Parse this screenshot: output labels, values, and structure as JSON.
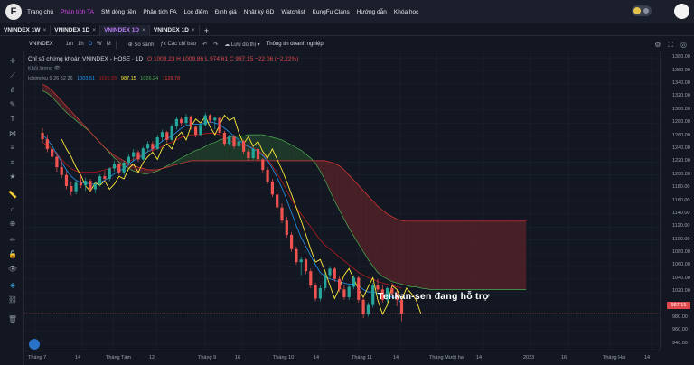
{
  "nav": {
    "logo": "F",
    "items": [
      "Trang chủ",
      "Phân tích TA",
      "SM dòng tiền",
      "Phân tích FA",
      "Lọc điểm",
      "Định giá",
      "Nhật ký GD",
      "Watchlist",
      "KungFu Clans",
      "Hướng dẫn",
      "Khóa học"
    ],
    "active_index": 1
  },
  "tabs": [
    "VNINDEX 1W",
    "VNINDEX 1D",
    "VNINDEX 1D",
    "VNINDEX 1D"
  ],
  "active_tab": 2,
  "toolbar": {
    "symbol": "VNINDEX",
    "intervals": [
      "1m",
      "1h",
      "D",
      "W",
      "M"
    ],
    "active_interval": "D",
    "compare": "So sánh",
    "indicators": "Các chỉ báo",
    "undo": "↶",
    "redo": "↷",
    "save": "Lưu đồ thị",
    "save_arrow": "▾",
    "company_info": "Thông tin doanh nghiệp"
  },
  "legend": {
    "title": "Chỉ số chứng khoán VNINDEX - HOSE",
    "timeframe": "1D",
    "ohlc": "O 1008.23  H 1009.86  L 974.61  C 987.15  −22.06 (−2.22%)",
    "volume_label": "Khối lượng",
    "ichimoku_label": "Ichimoku 9 26 52 26",
    "ichimoku_values": [
      "1003.51",
      "1026.55",
      "987.15",
      "1026.24",
      "1128.78"
    ]
  },
  "annotation": "Tenkan-sen đang hỗ trợ",
  "price_tag": "987.15",
  "yaxis": [
    "1380.00",
    "1360.00",
    "1340.00",
    "1320.00",
    "1300.00",
    "1280.00",
    "1260.00",
    "1240.00",
    "1220.00",
    "1200.00",
    "1180.00",
    "1160.00",
    "1140.00",
    "1120.00",
    "1100.00",
    "1080.00",
    "1060.00",
    "1040.00",
    "1020.00",
    "1000.00",
    "980.00",
    "960.00",
    "940.00"
  ],
  "xaxis": [
    {
      "label": "Tháng 7"
    },
    {
      "label": "14"
    },
    {
      "label": "Tháng Tám"
    },
    {
      "label": "12"
    },
    {
      "label": "Tháng 9"
    },
    {
      "label": "16"
    },
    {
      "label": "Tháng 10"
    },
    {
      "label": "14"
    },
    {
      "label": "Tháng 11"
    },
    {
      "label": "14"
    },
    {
      "label": "Tháng Mười hai"
    },
    {
      "label": "14"
    },
    {
      "label": "2023"
    },
    {
      "label": "16"
    },
    {
      "label": "Tháng Hai"
    },
    {
      "label": "14"
    }
  ],
  "colors": {
    "up": "#26a69a",
    "down": "#ef5350",
    "tenkan": "#2196f3",
    "kijun": "#b71c1c",
    "chikou": "#ffeb3b",
    "span_a": "#4caf50",
    "span_b": "#e53935",
    "cloud_bear": "#5a2329",
    "cloud_bull": "#22432c"
  },
  "chart_data": {
    "type": "candlestick",
    "y_range": [
      930,
      1390
    ],
    "candles": [
      [
        1265,
        1272,
        1250,
        1255
      ],
      [
        1255,
        1262,
        1235,
        1240
      ],
      [
        1240,
        1248,
        1222,
        1228
      ],
      [
        1228,
        1235,
        1205,
        1212
      ],
      [
        1212,
        1222,
        1195,
        1200
      ],
      [
        1200,
        1206,
        1178,
        1183
      ],
      [
        1183,
        1190,
        1168,
        1175
      ],
      [
        1175,
        1192,
        1170,
        1188
      ],
      [
        1188,
        1200,
        1180,
        1184
      ],
      [
        1184,
        1196,
        1176,
        1191
      ],
      [
        1191,
        1194,
        1174,
        1178
      ],
      [
        1178,
        1190,
        1172,
        1186
      ],
      [
        1186,
        1201,
        1182,
        1198
      ],
      [
        1198,
        1206,
        1190,
        1194
      ],
      [
        1194,
        1212,
        1190,
        1210
      ],
      [
        1210,
        1222,
        1205,
        1217
      ],
      [
        1217,
        1220,
        1200,
        1204
      ],
      [
        1204,
        1222,
        1200,
        1219
      ],
      [
        1219,
        1232,
        1215,
        1228
      ],
      [
        1228,
        1240,
        1222,
        1235
      ],
      [
        1235,
        1238,
        1220,
        1224
      ],
      [
        1224,
        1244,
        1222,
        1241
      ],
      [
        1241,
        1252,
        1235,
        1248
      ],
      [
        1248,
        1252,
        1236,
        1240
      ],
      [
        1240,
        1262,
        1238,
        1258
      ],
      [
        1258,
        1270,
        1252,
        1266
      ],
      [
        1266,
        1268,
        1250,
        1254
      ],
      [
        1254,
        1278,
        1252,
        1275
      ],
      [
        1275,
        1290,
        1270,
        1286
      ],
      [
        1286,
        1290,
        1276,
        1280
      ],
      [
        1280,
        1294,
        1276,
        1290
      ],
      [
        1290,
        1292,
        1270,
        1274
      ],
      [
        1274,
        1276,
        1258,
        1262
      ],
      [
        1262,
        1280,
        1260,
        1277
      ],
      [
        1277,
        1296,
        1275,
        1292
      ],
      [
        1292,
        1294,
        1280,
        1284
      ],
      [
        1284,
        1290,
        1270,
        1288
      ],
      [
        1288,
        1290,
        1262,
        1265
      ],
      [
        1265,
        1268,
        1244,
        1248
      ],
      [
        1248,
        1262,
        1246,
        1259
      ],
      [
        1259,
        1262,
        1240,
        1244
      ],
      [
        1244,
        1256,
        1238,
        1252
      ],
      [
        1252,
        1254,
        1232,
        1236
      ],
      [
        1236,
        1240,
        1222,
        1226
      ],
      [
        1226,
        1244,
        1224,
        1240
      ],
      [
        1240,
        1242,
        1220,
        1224
      ],
      [
        1224,
        1226,
        1204,
        1208
      ],
      [
        1208,
        1212,
        1186,
        1190
      ],
      [
        1190,
        1194,
        1166,
        1170
      ],
      [
        1170,
        1174,
        1146,
        1150
      ],
      [
        1150,
        1156,
        1126,
        1130
      ],
      [
        1130,
        1136,
        1104,
        1108
      ],
      [
        1108,
        1112,
        1082,
        1086
      ],
      [
        1086,
        1090,
        1062,
        1066
      ],
      [
        1066,
        1074,
        1046,
        1070
      ],
      [
        1070,
        1072,
        1048,
        1052
      ],
      [
        1052,
        1056,
        1026,
        1030
      ],
      [
        1030,
        1034,
        1006,
        1010
      ],
      [
        1010,
        1030,
        1006,
        1026
      ],
      [
        1026,
        1050,
        1022,
        1046
      ],
      [
        1046,
        1060,
        1040,
        1056
      ],
      [
        1056,
        1058,
        1036,
        1040
      ],
      [
        1040,
        1044,
        1020,
        1024
      ],
      [
        1024,
        1030,
        1008,
        1012
      ],
      [
        1012,
        1032,
        1008,
        1028
      ],
      [
        1028,
        1046,
        1024,
        1042
      ],
      [
        1042,
        1044,
        1004,
        1008
      ],
      [
        1008,
        1012,
        980,
        986
      ],
      [
        986,
        1004,
        982,
        1000
      ],
      [
        1000,
        1034,
        996,
        1030
      ],
      [
        1030,
        1040,
        1020,
        1024
      ],
      [
        1024,
        1030,
        1004,
        1008
      ],
      [
        1008,
        1028,
        1004,
        1026
      ],
      [
        1026,
        1034,
        1014,
        1018
      ],
      [
        1018,
        1022,
        998,
        1008
      ],
      [
        1008,
        1010,
        975,
        987
      ]
    ],
    "tenkan": [
      1262,
      1255,
      1245,
      1232,
      1220,
      1208,
      1198,
      1192,
      1188,
      1188,
      1186,
      1186,
      1188,
      1192,
      1196,
      1202,
      1206,
      1210,
      1216,
      1222,
      1226,
      1230,
      1236,
      1240,
      1246,
      1252,
      1256,
      1260,
      1266,
      1272,
      1276,
      1278,
      1278,
      1278,
      1280,
      1282,
      1280,
      1278,
      1272,
      1266,
      1260,
      1254,
      1248,
      1244,
      1240,
      1236,
      1230,
      1222,
      1210,
      1196,
      1180,
      1162,
      1142,
      1122,
      1104,
      1090,
      1076,
      1062,
      1050,
      1044,
      1040,
      1038,
      1036,
      1034,
      1032,
      1032,
      1030,
      1024,
      1020,
      1020,
      1018,
      1016,
      1014,
      1012,
      1010,
      1003
    ],
    "kijun": [
      1250,
      1246,
      1240,
      1232,
      1224,
      1216,
      1210,
      1206,
      1204,
      1204,
      1204,
      1204,
      1206,
      1208,
      1210,
      1212,
      1214,
      1216,
      1220,
      1224,
      1228,
      1232,
      1236,
      1238,
      1240,
      1244,
      1248,
      1250,
      1254,
      1258,
      1260,
      1262,
      1262,
      1262,
      1264,
      1264,
      1264,
      1262,
      1258,
      1254,
      1250,
      1248,
      1246,
      1244,
      1242,
      1238,
      1232,
      1224,
      1214,
      1202,
      1190,
      1176,
      1162,
      1150,
      1140,
      1130,
      1120,
      1110,
      1100,
      1092,
      1086,
      1080,
      1074,
      1068,
      1062,
      1056,
      1050,
      1046,
      1042,
      1040,
      1036,
      1034,
      1032,
      1030,
      1028,
      1026
    ],
    "chikou_offset": 26,
    "span_a": [
      1330,
      1326,
      1320,
      1312,
      1304,
      1296,
      1290,
      1284,
      1278,
      1272,
      1266,
      1258,
      1250,
      1242,
      1234,
      1226,
      1220,
      1214,
      1210,
      1206,
      1204,
      1202,
      1202,
      1204,
      1206,
      1210,
      1214,
      1218,
      1222,
      1226,
      1230,
      1234,
      1238,
      1240,
      1244,
      1248,
      1250,
      1254,
      1256,
      1258,
      1260,
      1260,
      1260,
      1262,
      1262,
      1262,
      1262,
      1260,
      1258,
      1256,
      1254,
      1250,
      1246,
      1242,
      1238,
      1232,
      1226,
      1218,
      1206,
      1192,
      1176,
      1160,
      1146,
      1132,
      1118,
      1106,
      1094,
      1082,
      1070,
      1060,
      1050,
      1044,
      1040,
      1036,
      1034,
      1032,
      1030,
      1028,
      1028,
      1026,
      1025,
      1024,
      1024,
      1024,
      1024,
      1024,
      1024,
      1024,
      1024,
      1024,
      1024,
      1024,
      1024,
      1024,
      1024,
      1024,
      1024,
      1024,
      1024,
      1024,
      1024,
      1024
    ],
    "span_b": [
      1340,
      1336,
      1330,
      1322,
      1314,
      1306,
      1298,
      1290,
      1282,
      1274,
      1266,
      1258,
      1250,
      1242,
      1236,
      1230,
      1226,
      1222,
      1218,
      1214,
      1212,
      1210,
      1208,
      1208,
      1208,
      1210,
      1212,
      1214,
      1216,
      1218,
      1220,
      1222,
      1222,
      1222,
      1222,
      1222,
      1222,
      1222,
      1222,
      1222,
      1222,
      1222,
      1222,
      1222,
      1222,
      1222,
      1222,
      1222,
      1222,
      1222,
      1222,
      1222,
      1222,
      1222,
      1222,
      1222,
      1222,
      1222,
      1222,
      1222,
      1220,
      1218,
      1214,
      1208,
      1200,
      1192,
      1184,
      1176,
      1168,
      1160,
      1152,
      1146,
      1140,
      1136,
      1132,
      1130,
      1129,
      1129,
      1129,
      1129,
      1129,
      1129,
      1129,
      1129,
      1129,
      1129,
      1129,
      1129,
      1129,
      1129,
      1129,
      1129,
      1129,
      1129,
      1129,
      1129,
      1129,
      1129,
      1129,
      1129,
      1129,
      1129
    ],
    "span_start_index": 0,
    "last_price": 987.15
  }
}
